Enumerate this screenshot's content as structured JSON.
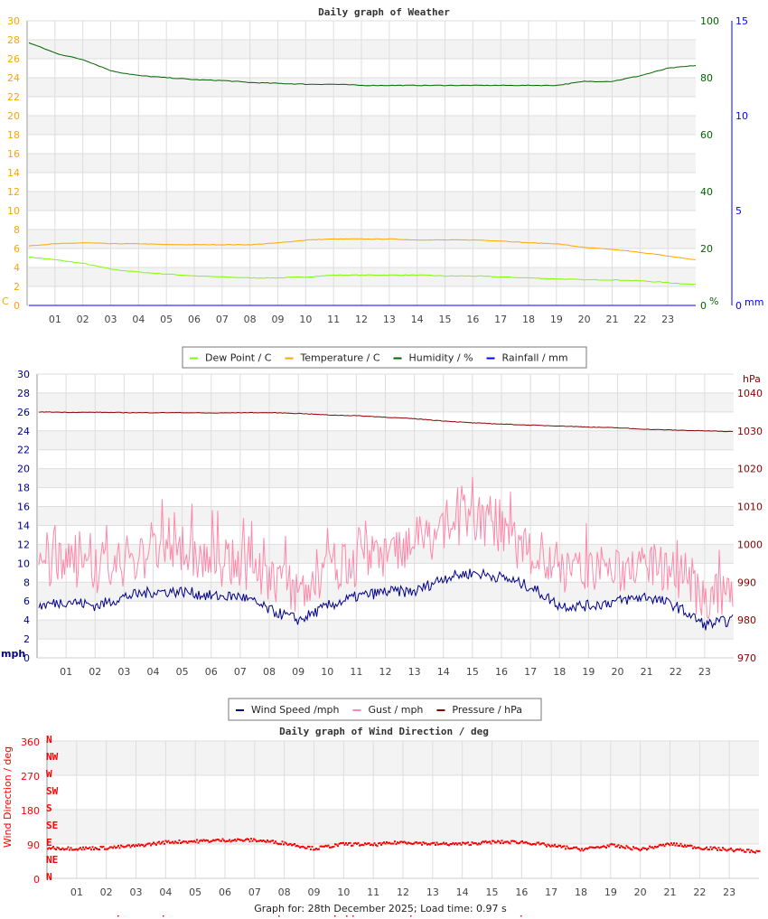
{
  "chart_data": [
    {
      "type": "line",
      "title": "Daily graph of Weather",
      "x_tick_labels": [
        "01",
        "02",
        "03",
        "04",
        "05",
        "06",
        "07",
        "08",
        "09",
        "10",
        "11",
        "12",
        "13",
        "14",
        "15",
        "16",
        "17",
        "18",
        "19",
        "20",
        "21",
        "22",
        "23"
      ],
      "x_hours": [
        0,
        1,
        2,
        3,
        4,
        5,
        6,
        7,
        8,
        9,
        10,
        11,
        12,
        13,
        14,
        15,
        16,
        17,
        18,
        19,
        20,
        21,
        22,
        23,
        24
      ],
      "axes": {
        "left": {
          "unit_label": "C",
          "range": [
            0,
            30
          ],
          "step": 2,
          "color": "#ffa500"
        },
        "right1": {
          "unit_label": "%",
          "range": [
            0,
            100
          ],
          "step": 20,
          "color": "#006400"
        },
        "right2": {
          "unit_label": "mm",
          "range": [
            0,
            15
          ],
          "step": 5,
          "color": "#0000ff"
        }
      },
      "grid": true,
      "legend_placement": "bottom",
      "series": [
        {
          "name": "Dew Point / C",
          "axis": "left",
          "color": "#7cfc00",
          "values": [
            5.1,
            4.8,
            4.4,
            3.8,
            3.5,
            3.3,
            3.1,
            3.0,
            2.9,
            2.9,
            3.0,
            3.2,
            3.2,
            3.2,
            3.2,
            3.1,
            3.1,
            3.0,
            2.9,
            2.8,
            2.7,
            2.7,
            2.6,
            2.4,
            2.2
          ]
        },
        {
          "name": "Temperature / C",
          "axis": "left",
          "color": "#ffa500",
          "values": [
            6.3,
            6.5,
            6.6,
            6.5,
            6.5,
            6.4,
            6.4,
            6.4,
            6.4,
            6.6,
            6.9,
            7.0,
            7.0,
            7.0,
            6.9,
            6.9,
            6.9,
            6.8,
            6.6,
            6.5,
            6.1,
            5.9,
            5.6,
            5.2,
            4.8
          ]
        },
        {
          "name": "Humidity / %",
          "axis": "right1",
          "color": "#006400",
          "values": [
            92.3,
            88.5,
            86.2,
            82.3,
            80.7,
            80.0,
            79.3,
            79.0,
            78.3,
            78.0,
            77.7,
            77.7,
            77.3,
            77.3,
            77.3,
            77.3,
            77.3,
            77.3,
            77.3,
            77.3,
            78.7,
            78.7,
            80.7,
            83.3,
            84.3
          ]
        },
        {
          "name": "Rainfall / mm",
          "axis": "right2",
          "color": "#0000ff",
          "values": [
            0,
            0,
            0,
            0,
            0,
            0,
            0,
            0,
            0,
            0,
            0,
            0,
            0,
            0,
            0,
            0,
            0,
            0,
            0,
            0,
            0,
            0,
            0,
            0,
            0
          ]
        }
      ]
    },
    {
      "type": "line",
      "title": "",
      "x_tick_labels": [
        "01",
        "02",
        "03",
        "04",
        "05",
        "06",
        "07",
        "08",
        "09",
        "10",
        "11",
        "12",
        "13",
        "14",
        "15",
        "16",
        "17",
        "18",
        "19",
        "20",
        "21",
        "22",
        "23"
      ],
      "x_hours": [
        0,
        1,
        2,
        3,
        4,
        5,
        6,
        7,
        8,
        9,
        10,
        11,
        12,
        13,
        14,
        15,
        16,
        17,
        18,
        19,
        20,
        21,
        22,
        23,
        24
      ],
      "axes": {
        "left": {
          "unit_label": "mph",
          "range": [
            0,
            30
          ],
          "step": 2,
          "color": "#00008b"
        },
        "right": {
          "unit_label": "hPa",
          "range": [
            970,
            1045
          ],
          "ticks": [
            970,
            980,
            990,
            1000,
            1010,
            1020,
            1030,
            1040
          ],
          "color": "#8b0000"
        }
      },
      "grid": true,
      "legend_placement": "bottom",
      "series": [
        {
          "name": "Wind Speed /mph",
          "axis": "left",
          "color": "#00008b",
          "values": [
            5.5,
            6,
            5.5,
            6.5,
            7,
            7,
            6.5,
            6.5,
            5,
            4,
            5.5,
            6.5,
            7,
            7,
            8.5,
            9,
            8.5,
            7.5,
            5.5,
            5.5,
            6,
            6.5,
            5.5,
            3.5,
            4
          ]
        },
        {
          "name": "Gust / mph",
          "axis": "left",
          "color": "#ff88aa",
          "values": [
            9,
            10,
            9,
            10,
            11,
            11,
            10,
            10,
            8,
            7,
            9,
            10,
            11,
            11,
            13,
            15,
            13,
            11,
            9,
            9,
            9,
            10,
            9,
            6,
            7
          ]
        },
        {
          "name": "Pressure / hPa",
          "axis": "right",
          "color": "#8b0000",
          "values": [
            1035,
            1034.9,
            1034.9,
            1034.8,
            1034.8,
            1034.8,
            1034.7,
            1034.8,
            1034.8,
            1034.6,
            1034.2,
            1034.0,
            1033.6,
            1033.2,
            1032.6,
            1032.1,
            1031.8,
            1031.5,
            1031.3,
            1031.0,
            1030.8,
            1030.4,
            1030.2,
            1030.0,
            1029.8
          ]
        }
      ]
    },
    {
      "type": "scatter",
      "title": "Daily graph of Wind Direction / deg",
      "ylabel": "Wind Direction / deg",
      "x_tick_labels": [
        "01",
        "02",
        "03",
        "04",
        "05",
        "06",
        "07",
        "08",
        "09",
        "10",
        "11",
        "12",
        "13",
        "14",
        "15",
        "16",
        "17",
        "18",
        "19",
        "20",
        "21",
        "22",
        "23"
      ],
      "x_hours": [
        0,
        1,
        2,
        3,
        4,
        5,
        6,
        7,
        8,
        9,
        10,
        11,
        12,
        13,
        14,
        15,
        16,
        17,
        18,
        19,
        20,
        21,
        22,
        23,
        24
      ],
      "ylim": [
        0,
        360
      ],
      "y_ticks": [
        0,
        90,
        180,
        270,
        360
      ],
      "compass_labels": [
        "N",
        "NE",
        "E",
        "SE",
        "S",
        "SW",
        "W",
        "NW",
        "N"
      ],
      "color": "#ff0000",
      "grid": true,
      "values": [
        80,
        78,
        80,
        85,
        95,
        97,
        100,
        100,
        92,
        78,
        90,
        88,
        95,
        90,
        90,
        95,
        95,
        85,
        76,
        86,
        76,
        90,
        80,
        75,
        70
      ]
    }
  ],
  "footer": "Graph for: 28th December 2025; Load time: 0.97 s"
}
